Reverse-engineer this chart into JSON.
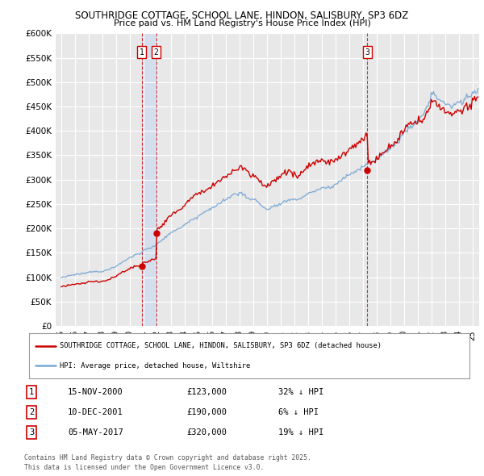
{
  "title1": "SOUTHRIDGE COTTAGE, SCHOOL LANE, HINDON, SALISBURY, SP3 6DZ",
  "title2": "Price paid vs. HM Land Registry's House Price Index (HPI)",
  "background_color": "#ffffff",
  "plot_bg_color": "#e8e8e8",
  "grid_color": "#ffffff",
  "red_color": "#cc0000",
  "blue_color": "#7aa8d4",
  "purchase_dates": [
    2000.875,
    2001.942,
    2017.347
  ],
  "purchase_prices": [
    123000,
    190000,
    320000
  ],
  "purchase_labels": [
    "1",
    "2",
    "3"
  ],
  "legend_red": "SOUTHRIDGE COTTAGE, SCHOOL LANE, HINDON, SALISBURY, SP3 6DZ (detached house)",
  "legend_blue": "HPI: Average price, detached house, Wiltshire",
  "table_data": [
    {
      "num": "1",
      "date": "15-NOV-2000",
      "price": "£123,000",
      "hpi": "32% ↓ HPI"
    },
    {
      "num": "2",
      "date": "10-DEC-2001",
      "price": "£190,000",
      "hpi": "6% ↓ HPI"
    },
    {
      "num": "3",
      "date": "05-MAY-2017",
      "price": "£320,000",
      "hpi": "19% ↓ HPI"
    }
  ],
  "footnote1": "Contains HM Land Registry data © Crown copyright and database right 2025.",
  "footnote2": "This data is licensed under the Open Government Licence v3.0.",
  "ylim": [
    0,
    600000
  ],
  "yticks": [
    0,
    50000,
    100000,
    150000,
    200000,
    250000,
    300000,
    350000,
    400000,
    450000,
    500000,
    550000,
    600000
  ]
}
